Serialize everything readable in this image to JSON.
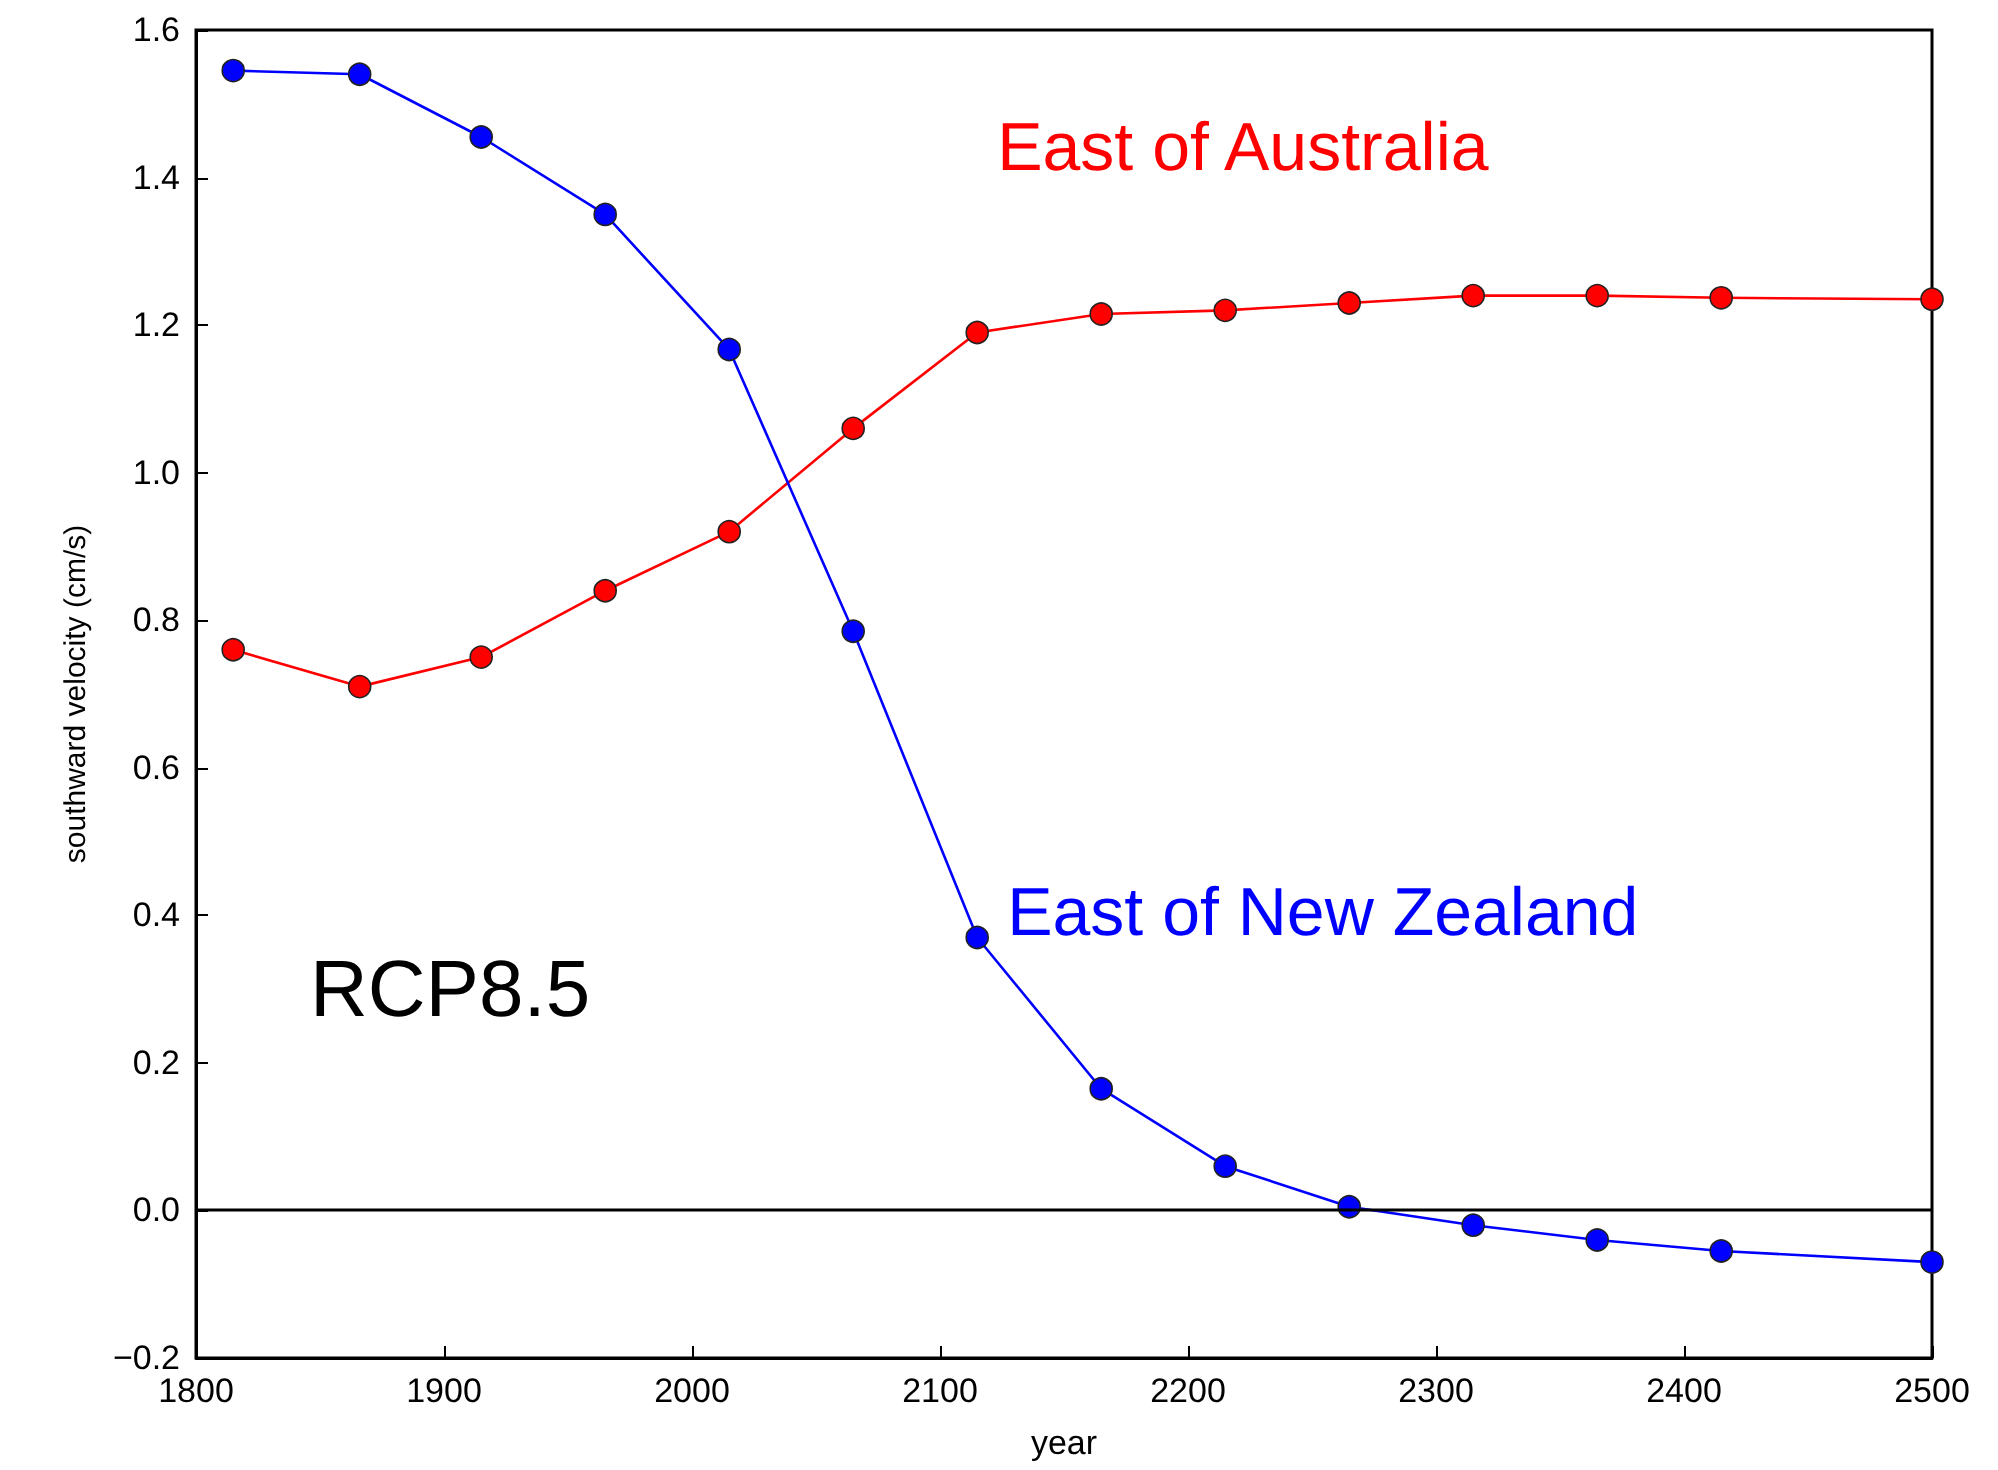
{
  "chart_data": {
    "type": "line",
    "xlabel": "year",
    "ylabel": "southward velocity (cm/s)",
    "x": [
      1815,
      1866,
      1915,
      1965,
      2015,
      2065,
      2115,
      2165,
      2215,
      2265,
      2315,
      2365,
      2415,
      2500
    ],
    "series": [
      {
        "name": "East of Australia",
        "color": "#ff0000",
        "values": [
          0.76,
          0.71,
          0.75,
          0.84,
          0.92,
          1.06,
          1.19,
          1.215,
          1.22,
          1.23,
          1.24,
          1.24,
          1.237,
          1.235
        ]
      },
      {
        "name": "East of New Zealand",
        "color": "#0000ff",
        "values": [
          1.545,
          1.54,
          1.455,
          1.35,
          1.167,
          0.785,
          0.37,
          0.165,
          0.06,
          0.005,
          -0.02,
          -0.04,
          -0.055,
          -0.07
        ]
      }
    ],
    "xlim": [
      1800,
      2500
    ],
    "xticks": [
      1800,
      1900,
      2000,
      2100,
      2200,
      2300,
      2400,
      2500
    ],
    "ylim": [
      -0.2,
      1.6
    ],
    "yticks": [
      {
        "value": -0.2,
        "label": "−0.2"
      },
      {
        "value": 0,
        "label": "0.0"
      },
      {
        "value": 0.2,
        "label": "0.2"
      },
      {
        "value": 0.4,
        "label": "0.4"
      },
      {
        "value": 0.6,
        "label": "0.6"
      },
      {
        "value": 0.8,
        "label": "0.8"
      },
      {
        "value": 1,
        "label": "1.0"
      },
      {
        "value": 1.2,
        "label": "1.2"
      },
      {
        "value": 1.4,
        "label": "1.4"
      },
      {
        "value": 1.6,
        "label": "1.6"
      }
    ],
    "ref_lines": [
      {
        "axis": "y",
        "value": 0,
        "color": "#000000",
        "line_style": "solid"
      }
    ],
    "annotations": [
      "RCP8.5"
    ],
    "grid": false,
    "legend": false,
    "marker": "circle",
    "line_style": "solid"
  }
}
